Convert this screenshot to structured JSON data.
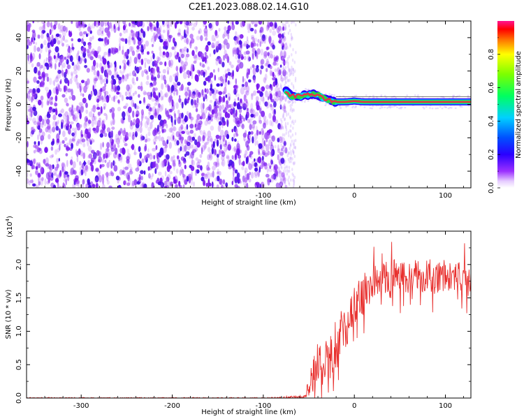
{
  "title": "C2E1.2023.088.02.14.G10",
  "colors": {
    "snr_line": "#e8302e",
    "ridge_core": "#e8304a",
    "ridge_edge": "#28d840",
    "noise": "#7a18f0"
  },
  "chart_data": [
    {
      "type": "heatmap",
      "xlabel": "Height of straight line (km)",
      "ylabel": "Frequency (Hz)",
      "xlim": [
        -360,
        128
      ],
      "ylim": [
        -50,
        50
      ],
      "xticks": [
        -300,
        -200,
        -100,
        0,
        100
      ],
      "yticks": [
        -40,
        -20,
        0,
        20,
        40
      ],
      "xtick_labels": [
        "-300",
        "-200",
        "-100",
        "0",
        "100"
      ],
      "ytick_labels": [
        "-40",
        "-20",
        "0",
        "20",
        "40"
      ],
      "noise_region_x": [
        -360,
        -75
      ],
      "ridge": {
        "x": [
          -75,
          -70,
          -60,
          -50,
          -40,
          -35,
          -30,
          -25,
          -20,
          -10,
          0,
          10,
          30,
          50,
          70,
          90,
          110,
          128
        ],
        "y": [
          8,
          5,
          5,
          6,
          6,
          4,
          3,
          2,
          1.5,
          1.5,
          2,
          1.5,
          1.5,
          1.5,
          1.5,
          1.5,
          1.5,
          1.5
        ]
      },
      "colorbar": {
        "label": "Normalized spectral amplitude",
        "range": [
          0,
          1
        ],
        "ticks": [
          0.0,
          0.2,
          0.4,
          0.6,
          0.8
        ],
        "tick_labels": [
          "0.0",
          "0.2",
          "0.4",
          "0.6",
          "0.8"
        ]
      }
    },
    {
      "type": "line",
      "xlabel": "Height of straight line (km)",
      "ylabel": "SNR (10 * v/v)",
      "y_multiplier": "(x10",
      "y_multiplier_exp": "4",
      "y_multiplier_close": ")",
      "xlim": [
        -360,
        128
      ],
      "ylim": [
        0,
        2.5
      ],
      "xticks": [
        -300,
        -200,
        -100,
        0,
        100
      ],
      "yticks": [
        0.0,
        0.5,
        1.0,
        1.5,
        2.0
      ],
      "xtick_labels": [
        "-300",
        "-200",
        "-100",
        "0",
        "100"
      ],
      "ytick_labels": [
        "0.0",
        "0.5",
        "1.0",
        "1.5",
        "2.0"
      ],
      "series": [
        {
          "x": [
            -360,
            -300,
            -200,
            -100,
            -55,
            -50,
            -45,
            -40,
            -35,
            -30,
            -25,
            -20,
            -15,
            -10,
            -5,
            0,
            5,
            10,
            15,
            20,
            25,
            30,
            35,
            40,
            50,
            60,
            70,
            80,
            90,
            100,
            110,
            120,
            128
          ],
          "y": [
            0.0,
            0.0,
            0.0,
            0.0,
            0.02,
            0.15,
            0.35,
            0.5,
            0.45,
            0.55,
            0.65,
            0.8,
            0.9,
            1.0,
            1.2,
            1.4,
            1.5,
            1.55,
            1.65,
            1.75,
            1.8,
            1.78,
            1.8,
            1.85,
            1.82,
            1.8,
            1.82,
            1.85,
            1.8,
            1.82,
            1.78,
            1.8,
            1.75
          ],
          "noise_amplitude": [
            0.01,
            0.01,
            0.01,
            0.01,
            0.02,
            0.15,
            0.25,
            0.35,
            0.35,
            0.35,
            0.35,
            0.4,
            0.4,
            0.35,
            0.3,
            0.3,
            0.3,
            0.3,
            0.3,
            0.25,
            0.25,
            0.25,
            0.25,
            0.25,
            0.25,
            0.25,
            0.25,
            0.25,
            0.25,
            0.25,
            0.25,
            0.25,
            0.25
          ]
        }
      ]
    }
  ]
}
